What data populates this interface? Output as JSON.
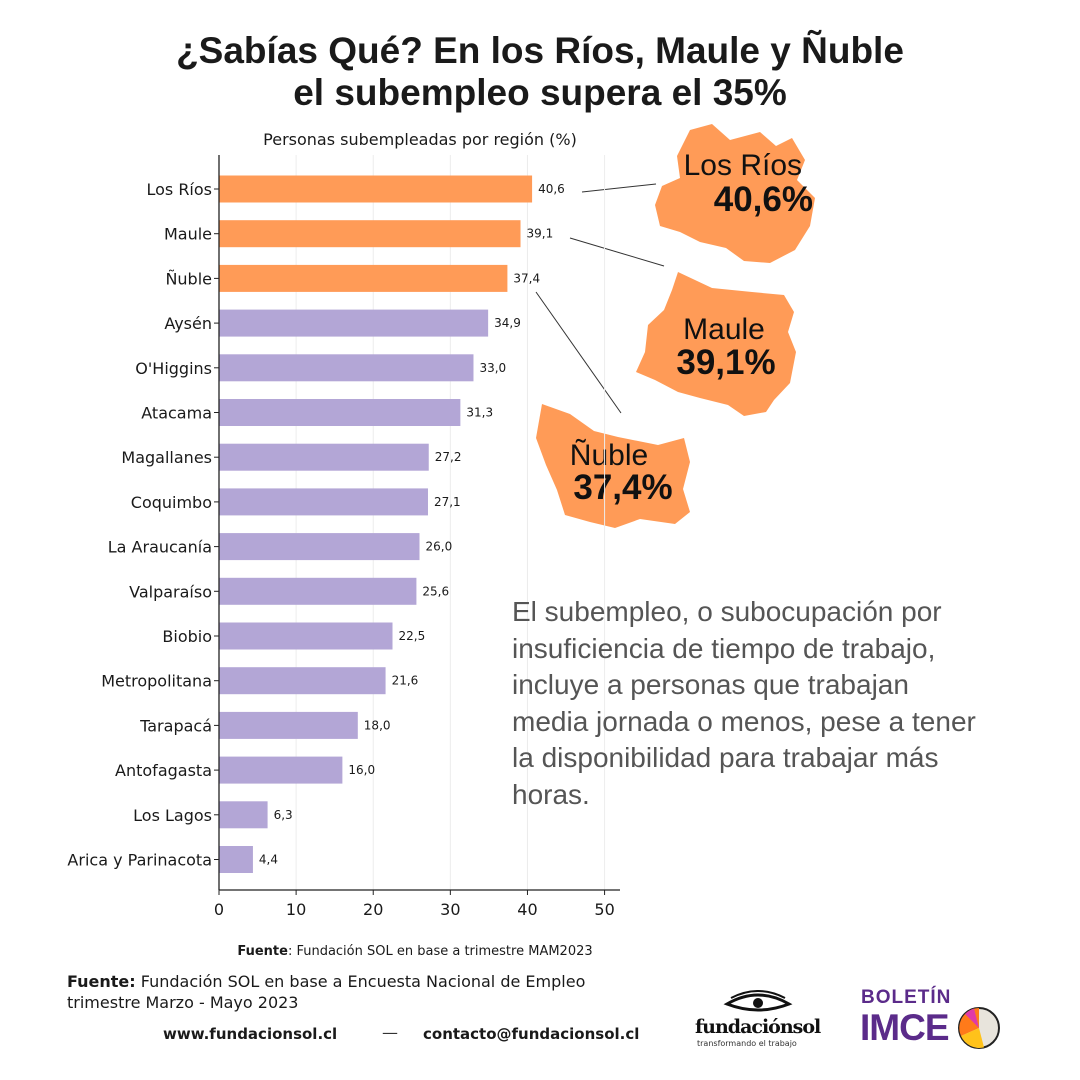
{
  "title": {
    "line1": "¿Sabías Qué? En los Ríos, Maule y Ñuble",
    "line2": "el subempleo supera el 35%"
  },
  "chart_data": {
    "type": "bar",
    "orientation": "horizontal",
    "title": "Personas subempleadas por región (%)",
    "categories": [
      "Los Ríos",
      "Maule",
      "Ñuble",
      "Aysén",
      "O'Higgins",
      "Atacama",
      "Magallanes",
      "Coquimbo",
      "La Araucanía",
      "Valparaíso",
      "Biobio",
      "Metropolitana",
      "Tarapacá",
      "Antofagasta",
      "Los Lagos",
      "Arica y Parinacota"
    ],
    "values": [
      40.6,
      39.1,
      37.4,
      34.9,
      33.0,
      31.3,
      27.2,
      27.1,
      26.0,
      25.6,
      22.5,
      21.6,
      18.0,
      16.0,
      6.3,
      4.4
    ],
    "value_labels": [
      "40,6",
      "39,1",
      "37,4",
      "34,9",
      "33,0",
      "31,3",
      "27,2",
      "27,1",
      "26,0",
      "25,6",
      "22,5",
      "21,6",
      "18,0",
      "16,0",
      "6,3",
      "4,4"
    ],
    "highlight_count": 3,
    "xlim": [
      0,
      52
    ],
    "xticks": [
      0,
      10,
      20,
      30,
      40,
      50
    ],
    "grid": true,
    "colors": {
      "highlight": "#ff9b57",
      "default": "#b3a6d6"
    },
    "source_label": "Fuente",
    "source_text": ": Fundación SOL en base a trimestre MAM2023"
  },
  "callouts": [
    {
      "region": "Los Ríos",
      "value": "40,6%"
    },
    {
      "region": "Maule",
      "value": "39,1%"
    },
    {
      "region": "Ñuble",
      "value": "37,4%"
    }
  ],
  "description": "El subempleo, o subocupación por insuficiencia de tiempo de trabajo, incluye a personas que trabajan media jornada o menos, pese a tener la disponibilidad para trabajar más horas.",
  "footer": {
    "source_label": "Fuente:",
    "source_text": " Fundación SOL en base a Encuesta Nacional de Empleo trimestre Marzo - Mayo 2023",
    "website": "www.fundacionsol.cl",
    "separator": "—",
    "email": "contacto@fundacionsol.cl"
  },
  "logos": {
    "fundacion": {
      "name": "fundaciónsol",
      "tagline": "transformando el trabajo",
      "icon": "eye-icon"
    },
    "boletin": {
      "top": "BOLETÍN",
      "main": "IMCE",
      "icon": "pie-icon"
    }
  },
  "colors": {
    "map_fill": "#ff9b57",
    "accent_purple": "#5b2b8a",
    "text_gray": "#555555"
  }
}
